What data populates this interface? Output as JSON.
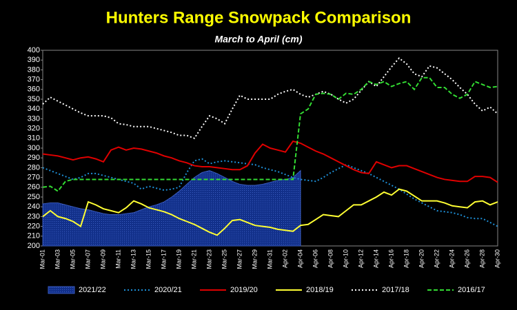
{
  "chart_data": {
    "type": "line",
    "title": "Hunters Range Snowpack Comparison",
    "subtitle": "March to April  (cm)",
    "categories": [
      "Mar-01",
      null,
      "Mar-03",
      null,
      "Mar-05",
      null,
      "Mar-07",
      null,
      "Mar-09",
      null,
      "Mar-11",
      null,
      "Mar-13",
      null,
      "Mar-15",
      null,
      "Mar-17",
      null,
      "Mar-19",
      null,
      "Mar-21",
      null,
      "Mar-23",
      null,
      "Mar-25",
      null,
      "Mar-27",
      null,
      "Mar-29",
      null,
      "Mar-31",
      null,
      "Apr-02",
      null,
      "Apr-04",
      null,
      "Apr-06",
      null,
      "Apr-08",
      null,
      "Apr-10",
      null,
      "Apr-12",
      null,
      "Apr-14",
      null,
      "Apr-16",
      null,
      "Apr-18",
      null,
      "Apr-20",
      null,
      "Apr-22",
      null,
      "Apr-24",
      null,
      "Apr-26",
      null,
      "Apr-28",
      null,
      "Apr-30"
    ],
    "ylim": [
      200,
      400
    ],
    "yticks": [
      200,
      210,
      220,
      230,
      240,
      250,
      260,
      270,
      280,
      290,
      300,
      310,
      320,
      330,
      340,
      350,
      360,
      370,
      380,
      390,
      400
    ],
    "grid": false,
    "legend": "bottom",
    "series": [
      {
        "name": "2021/22",
        "color": "#12308a",
        "style": "area",
        "values": [
          243,
          244,
          244,
          242,
          240,
          238,
          237,
          235,
          233,
          232,
          232,
          233,
          234,
          237,
          240,
          242,
          245,
          250,
          256,
          263,
          270,
          275,
          277,
          274,
          270,
          266,
          263,
          262,
          262,
          263,
          265,
          267,
          268,
          270,
          277,
          null,
          null,
          null,
          null,
          null,
          null,
          null,
          null,
          null,
          null,
          null,
          null,
          null,
          null,
          null,
          null,
          null,
          null,
          null,
          null,
          null,
          null,
          null,
          null,
          null,
          null
        ]
      },
      {
        "name": "2020/21",
        "color": "#1e90d8",
        "style": "dotted",
        "values": [
          280,
          277,
          274,
          271,
          268,
          270,
          274,
          274,
          272,
          270,
          268,
          266,
          264,
          258,
          261,
          259,
          257,
          258,
          260,
          275,
          287,
          289,
          284,
          286,
          287,
          286,
          285,
          284,
          283,
          280,
          278,
          276,
          273,
          270,
          268,
          267,
          266,
          270,
          275,
          279,
          283,
          280,
          277,
          274,
          270,
          266,
          262,
          258,
          253,
          248,
          244,
          240,
          236,
          235,
          234,
          232,
          229,
          228,
          228,
          224,
          220
        ]
      },
      {
        "name": "2019/20",
        "color": "#e00000",
        "style": "solid",
        "values": [
          294,
          293,
          292,
          290,
          288,
          290,
          291,
          289,
          286,
          298,
          301,
          298,
          300,
          299,
          297,
          295,
          292,
          290,
          287,
          285,
          282,
          281,
          281,
          280,
          279,
          278,
          278,
          282,
          295,
          304,
          300,
          298,
          296,
          307,
          305,
          301,
          297,
          294,
          290,
          286,
          282,
          278,
          275,
          274,
          286,
          283,
          280,
          282,
          282,
          279,
          276,
          273,
          270,
          268,
          267,
          266,
          266,
          271,
          271,
          270,
          265
        ]
      },
      {
        "name": "2018/19",
        "color": "#ffff33",
        "style": "solid",
        "values": [
          230,
          236,
          230,
          228,
          225,
          220,
          245,
          242,
          238,
          236,
          234,
          239,
          246,
          243,
          239,
          237,
          235,
          232,
          228,
          225,
          222,
          218,
          214,
          211,
          218,
          226,
          227,
          224,
          221,
          220,
          219,
          217,
          216,
          215,
          221,
          222,
          227,
          232,
          231,
          230,
          236,
          242,
          242,
          246,
          250,
          255,
          252,
          258,
          256,
          251,
          246,
          246,
          246,
          244,
          241,
          240,
          239,
          245,
          246,
          242,
          245
        ]
      },
      {
        "name": "2017/18",
        "color": "#ffffff",
        "style": "dotted",
        "values": [
          345,
          352,
          348,
          344,
          340,
          336,
          333,
          333,
          333,
          331,
          325,
          324,
          322,
          322,
          322,
          320,
          318,
          316,
          313,
          313,
          310,
          322,
          333,
          330,
          325,
          340,
          354,
          350,
          350,
          350,
          350,
          355,
          358,
          360,
          355,
          352,
          355,
          358,
          355,
          350,
          346,
          350,
          359,
          368,
          363,
          373,
          383,
          392,
          386,
          376,
          373,
          384,
          382,
          376,
          370,
          362,
          355,
          345,
          338,
          342,
          335
        ]
      },
      {
        "name": "2016/17",
        "color": "#33dd33",
        "style": "dashed",
        "values": [
          260,
          261,
          256,
          266,
          268,
          268,
          268,
          268,
          268,
          268,
          268,
          268,
          268,
          268,
          268,
          268,
          268,
          268,
          268,
          268,
          268,
          268,
          268,
          268,
          268,
          268,
          268,
          268,
          268,
          268,
          268,
          268,
          268,
          268,
          335,
          340,
          355,
          356,
          355,
          350,
          356,
          355,
          360,
          368,
          365,
          368,
          363,
          366,
          368,
          360,
          372,
          372,
          362,
          362,
          355,
          351,
          355,
          368,
          365,
          362,
          363
        ]
      }
    ]
  }
}
